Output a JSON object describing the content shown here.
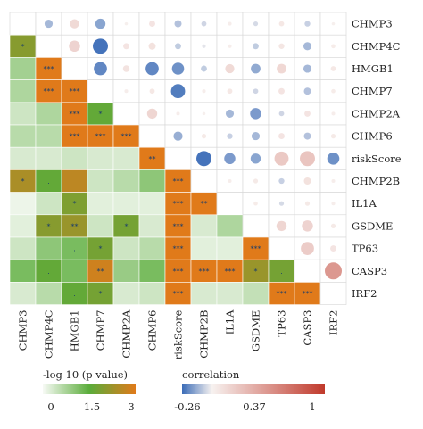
{
  "chart_data": {
    "type": "heatmap",
    "variables": [
      "CHMP3",
      "CHMP4C",
      "HMGB1",
      "CHMP7",
      "CHMP2A",
      "CHMP6",
      "riskScore",
      "CHMP2B",
      "IL1A",
      "GSDME",
      "TP63",
      "CASP3",
      "IRF2"
    ],
    "lower_triangle_metric": "-log 10 (p value)",
    "upper_triangle_metric": "correlation",
    "neglog10p_lower": [
      [],
      [
        2.0
      ],
      [
        0.8,
        3.0
      ],
      [
        0.7,
        3.0,
        3.0
      ],
      [
        0.4,
        0.7,
        3.0,
        1.6
      ],
      [
        0.6,
        0.6,
        3.0,
        3.0,
        3.0
      ],
      [
        0.3,
        0.3,
        0.4,
        0.3,
        0.3,
        3.0
      ],
      [
        2.4,
        1.6,
        2.6,
        0.4,
        0.6,
        1.0,
        3.0
      ],
      [
        0.1,
        0.4,
        1.9,
        0.2,
        0.2,
        0.2,
        3.0,
        3.0
      ],
      [
        0.2,
        2.0,
        2.2,
        0.4,
        1.8,
        0.3,
        3.0,
        0.3,
        0.7
      ],
      [
        0.4,
        1.0,
        1.2,
        1.8,
        0.4,
        0.6,
        3.0,
        0.2,
        0.2,
        3.0
      ],
      [
        1.2,
        1.6,
        1.2,
        2.8,
        0.9,
        1.2,
        3.0,
        3.0,
        3.0,
        2.2,
        1.8
      ],
      [
        0.3,
        0.6,
        1.6,
        1.8,
        0.3,
        0.4,
        3.0,
        0.3,
        0.3,
        0.5,
        3.0,
        3.0
      ]
    ],
    "significance_marks_lower": [
      [],
      [
        "*"
      ],
      [
        "",
        "***"
      ],
      [
        "",
        "***",
        "***"
      ],
      [
        "",
        "",
        "***",
        "*"
      ],
      [
        "",
        "",
        "***",
        "***",
        "***"
      ],
      [
        "",
        "",
        "",
        "",
        "",
        "**"
      ],
      [
        "*",
        ".",
        "",
        "",
        "",
        "",
        "***"
      ],
      [
        "",
        "",
        "*",
        "",
        "",
        "",
        "***",
        "**"
      ],
      [
        "",
        "*",
        "**",
        "",
        "*",
        "",
        "***",
        "",
        ""
      ],
      [
        "",
        "",
        ".",
        "*",
        "",
        "",
        "***",
        "",
        "",
        "***"
      ],
      [
        "",
        ".",
        "",
        "**",
        "",
        "",
        "***",
        "***",
        "***",
        "*",
        "."
      ],
      [
        "",
        "",
        ".",
        "*",
        "",
        "",
        "***",
        "",
        "",
        "",
        "***",
        "***"
      ]
    ],
    "correlation_upper": [
      [
        0.0,
        -0.12,
        0.14,
        -0.16,
        0.02,
        0.08,
        -0.1,
        -0.06,
        0.03,
        -0.05,
        0.06,
        -0.07,
        0.02
      ],
      [
        0.0,
        0.0,
        0.18,
        -0.26,
        0.08,
        0.1,
        -0.08,
        -0.03,
        0.03,
        -0.08,
        0.07,
        -0.12,
        0.04
      ],
      [
        0.0,
        0.0,
        0.0,
        -0.22,
        0.09,
        -0.22,
        -0.2,
        -0.08,
        0.14,
        -0.15,
        0.15,
        -0.12,
        0.06
      ],
      [
        0.0,
        0.0,
        0.0,
        0.0,
        0.03,
        0.06,
        -0.24,
        0.03,
        0.06,
        -0.06,
        0.08,
        -0.1,
        0.04
      ],
      [
        0.0,
        0.0,
        0.0,
        0.0,
        0.0,
        0.16,
        0.03,
        0.02,
        -0.12,
        -0.18,
        -0.06,
        0.08,
        0.03
      ],
      [
        0.0,
        0.0,
        0.0,
        0.0,
        0.0,
        0.0,
        -0.14,
        0.05,
        -0.07,
        -0.12,
        0.08,
        -0.1,
        0.05
      ],
      [
        0.0,
        0.0,
        0.0,
        0.0,
        0.0,
        0.0,
        0.0,
        -0.26,
        -0.18,
        -0.16,
        0.24,
        0.26,
        -0.2
      ],
      [
        0.0,
        0.0,
        0.0,
        0.0,
        0.0,
        0.0,
        0.0,
        0.0,
        0.03,
        0.05,
        -0.07,
        0.1,
        0.03
      ],
      [
        0.0,
        0.0,
        0.0,
        0.0,
        0.0,
        0.0,
        0.0,
        0.0,
        0.0,
        0.04,
        -0.05,
        0.05,
        0.03
      ],
      [
        0.0,
        0.0,
        0.0,
        0.0,
        0.0,
        0.0,
        0.0,
        0.0,
        0.0,
        0.0,
        0.16,
        0.18,
        0.05
      ],
      [
        0.0,
        0.0,
        0.0,
        0.0,
        0.0,
        0.0,
        0.0,
        0.0,
        0.0,
        0.0,
        0.0,
        0.22,
        0.08
      ],
      [
        0.0,
        0.0,
        0.0,
        0.0,
        0.0,
        0.0,
        0.0,
        0.0,
        0.0,
        0.0,
        0.0,
        0.0,
        0.52
      ],
      [
        0.0,
        0.0,
        0.0,
        0.0,
        0.0,
        0.0,
        0.0,
        0.0,
        0.0,
        0.0,
        0.0,
        0.0,
        0.0
      ]
    ],
    "legend_p": {
      "title": "-log 10 (p value)",
      "ticks": [
        "0",
        "1.5",
        "3"
      ],
      "range": [
        0,
        3
      ],
      "colors": [
        "#f7faf5",
        "#5aac3a",
        "#e07a1a"
      ]
    },
    "legend_corr": {
      "title": "correlation",
      "ticks": [
        "-0.26",
        "0.37",
        "1"
      ],
      "range": [
        -0.26,
        1
      ],
      "colors": [
        "#3b6cb7",
        "#f7f2f0",
        "#c0392b"
      ]
    },
    "grid": true
  }
}
